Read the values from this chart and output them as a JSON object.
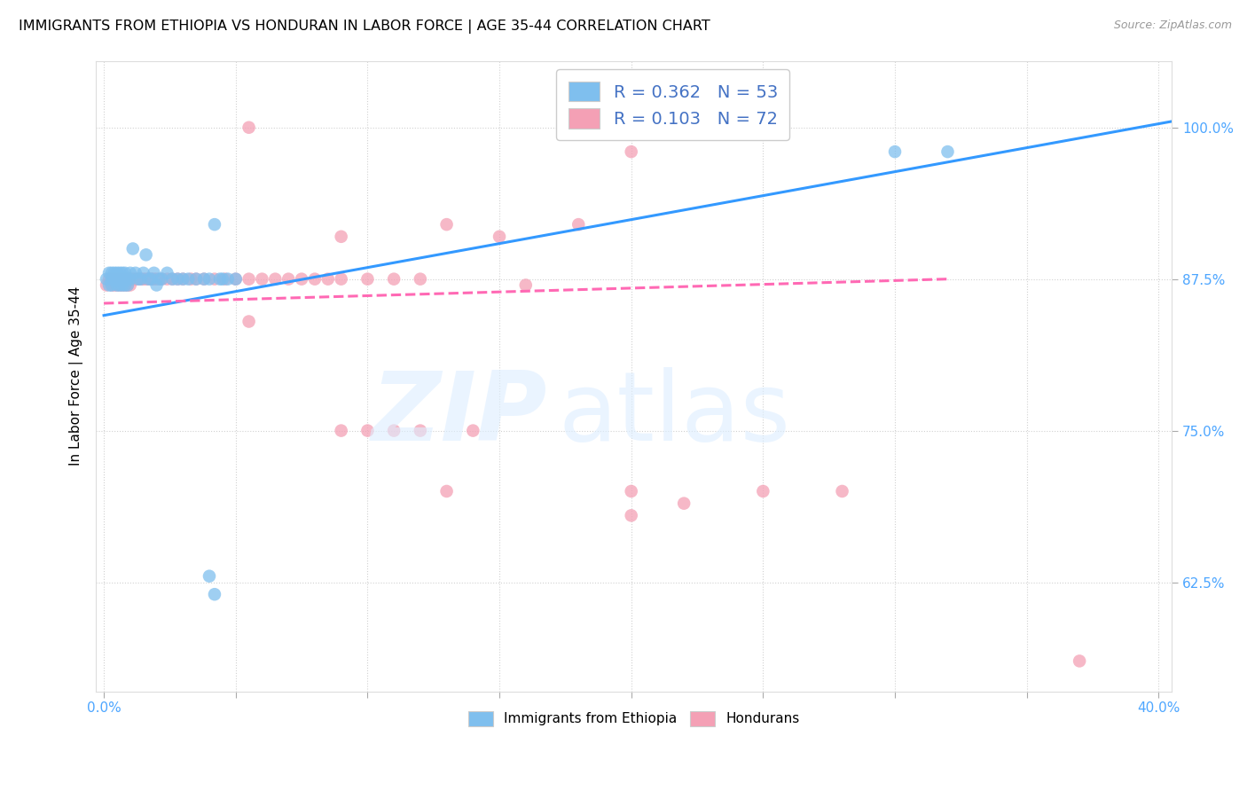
{
  "title": "IMMIGRANTS FROM ETHIOPIA VS HONDURAN IN LABOR FORCE | AGE 35-44 CORRELATION CHART",
  "source": "Source: ZipAtlas.com",
  "ylabel": "In Labor Force | Age 35-44",
  "blue_color": "#7fbfee",
  "pink_color": "#f4a0b5",
  "blue_line_color": "#3399ff",
  "pink_line_color": "#ff69b4",
  "legend_entries": [
    "R = 0.362   N = 53",
    "R = 0.103   N = 72"
  ],
  "legend_bottom": [
    "Immigrants from Ethiopia",
    "Hondurans"
  ],
  "ytick_vals": [
    0.625,
    0.75,
    0.875,
    1.0
  ],
  "ytick_labels": [
    "62.5%",
    "75.0%",
    "87.5%",
    "100.0%"
  ],
  "xlim": [
    -0.003,
    0.405
  ],
  "ylim": [
    0.535,
    1.055
  ],
  "eth_x": [
    0.001,
    0.002,
    0.002,
    0.003,
    0.003,
    0.003,
    0.004,
    0.004,
    0.005,
    0.005,
    0.005,
    0.006,
    0.006,
    0.006,
    0.007,
    0.007,
    0.007,
    0.008,
    0.008,
    0.008,
    0.009,
    0.009,
    0.01,
    0.01,
    0.011,
    0.012,
    0.013,
    0.014,
    0.015,
    0.016,
    0.017,
    0.018,
    0.019,
    0.02,
    0.021,
    0.022,
    0.024,
    0.026,
    0.028,
    0.03,
    0.032,
    0.035,
    0.038,
    0.04,
    0.042,
    0.044,
    0.047,
    0.05,
    0.04,
    0.042,
    0.045,
    0.3,
    0.32
  ],
  "eth_y": [
    0.875,
    0.88,
    0.87,
    0.875,
    0.88,
    0.87,
    0.875,
    0.88,
    0.875,
    0.87,
    0.88,
    0.875,
    0.87,
    0.88,
    0.875,
    0.87,
    0.88,
    0.875,
    0.87,
    0.88,
    0.875,
    0.87,
    0.88,
    0.875,
    0.9,
    0.88,
    0.875,
    0.875,
    0.88,
    0.895,
    0.875,
    0.875,
    0.88,
    0.87,
    0.875,
    0.875,
    0.88,
    0.875,
    0.875,
    0.875,
    0.875,
    0.875,
    0.875,
    0.875,
    0.92,
    0.875,
    0.875,
    0.875,
    0.63,
    0.615,
    0.875,
    0.98,
    0.98
  ],
  "hon_x": [
    0.001,
    0.002,
    0.003,
    0.003,
    0.004,
    0.004,
    0.005,
    0.005,
    0.006,
    0.006,
    0.007,
    0.007,
    0.008,
    0.008,
    0.009,
    0.009,
    0.01,
    0.01,
    0.011,
    0.012,
    0.013,
    0.014,
    0.015,
    0.016,
    0.017,
    0.018,
    0.019,
    0.02,
    0.022,
    0.024,
    0.026,
    0.028,
    0.03,
    0.033,
    0.035,
    0.038,
    0.042,
    0.046,
    0.05,
    0.055,
    0.06,
    0.065,
    0.07,
    0.075,
    0.08,
    0.085,
    0.09,
    0.1,
    0.11,
    0.12,
    0.055,
    0.18,
    0.195,
    0.2,
    0.13,
    0.15,
    0.16,
    0.1,
    0.12,
    0.14,
    0.09,
    0.11,
    0.13,
    0.2,
    0.22,
    0.25,
    0.28,
    0.055,
    0.09,
    0.18,
    0.2,
    0.37
  ],
  "hon_y": [
    0.87,
    0.875,
    0.875,
    0.87,
    0.875,
    0.87,
    0.875,
    0.87,
    0.875,
    0.87,
    0.875,
    0.87,
    0.875,
    0.87,
    0.875,
    0.87,
    0.875,
    0.87,
    0.875,
    0.875,
    0.875,
    0.875,
    0.875,
    0.875,
    0.875,
    0.875,
    0.875,
    0.875,
    0.875,
    0.875,
    0.875,
    0.875,
    0.875,
    0.875,
    0.875,
    0.875,
    0.875,
    0.875,
    0.875,
    0.875,
    0.875,
    0.875,
    0.875,
    0.875,
    0.875,
    0.875,
    0.875,
    0.875,
    0.875,
    0.875,
    1.0,
    1.0,
    1.0,
    0.98,
    0.92,
    0.91,
    0.87,
    0.75,
    0.75,
    0.75,
    0.75,
    0.75,
    0.7,
    0.7,
    0.69,
    0.7,
    0.7,
    0.84,
    0.91,
    0.92,
    0.68,
    0.56
  ],
  "eth_line_x": [
    0.0,
    0.405
  ],
  "eth_line_y": [
    0.845,
    1.005
  ],
  "hon_line_x": [
    0.0,
    0.32
  ],
  "hon_line_y": [
    0.855,
    0.875
  ],
  "xticks": [
    0.0,
    0.05,
    0.1,
    0.15,
    0.2,
    0.25,
    0.3,
    0.35,
    0.4
  ]
}
